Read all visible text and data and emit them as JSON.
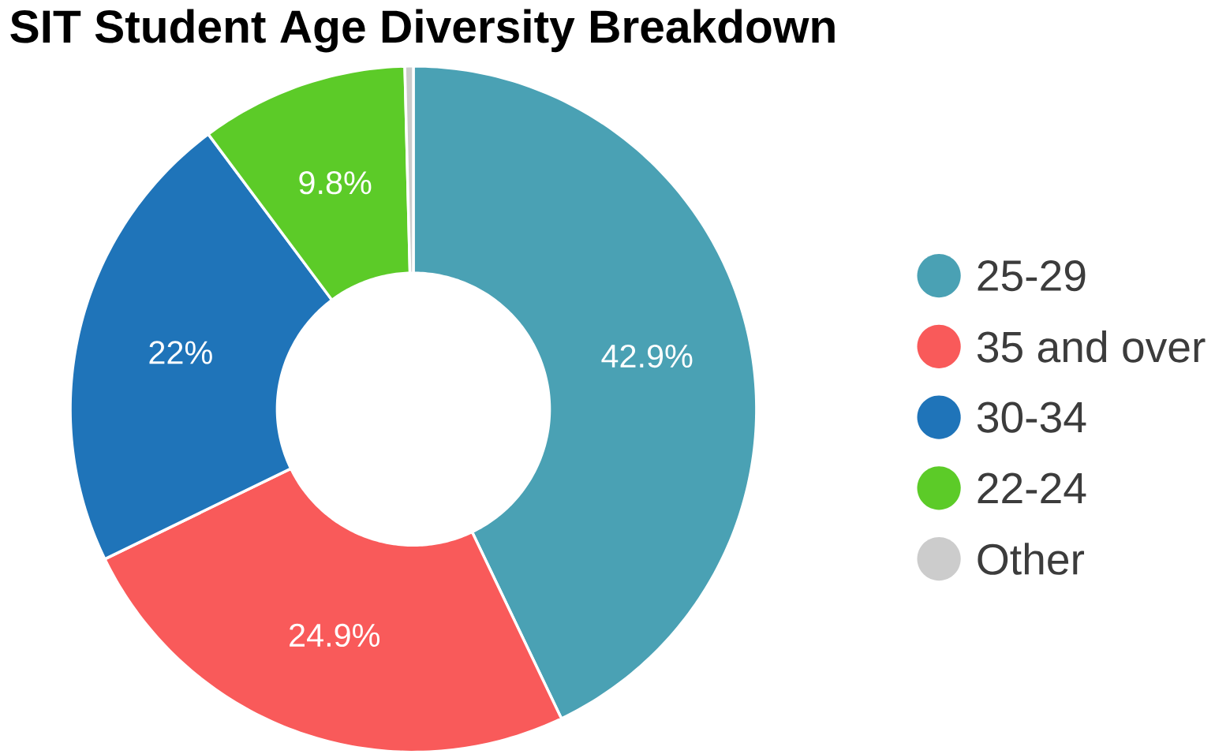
{
  "chart_data": {
    "type": "donut",
    "title": "SIT Student Age Diversity Breakdown",
    "categories": [
      "25-29",
      "35 and over",
      "30-34",
      "22-24",
      "Other"
    ],
    "values": [
      42.9,
      24.9,
      22,
      9.8,
      0.4
    ],
    "colors": [
      "#4aa1b4",
      "#f95a5a",
      "#1f74b9",
      "#5ccb28",
      "#cccccc"
    ],
    "value_labels": [
      "42.9%",
      "24.9%",
      "22%",
      "9.8%",
      null
    ],
    "legend": "right"
  }
}
